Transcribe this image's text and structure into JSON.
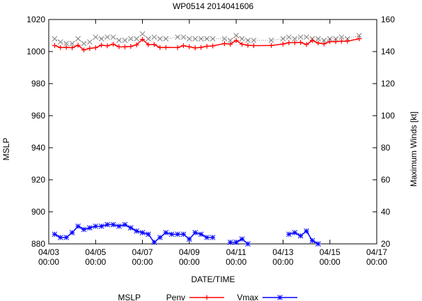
{
  "chart_data": {
    "type": "line",
    "title": "WP0514 2014041606",
    "xlabel": "DATE/TIME",
    "ylabel": "MSLP",
    "y2label": "Maximum Winds [kt]",
    "x_ticks": [
      {
        "day": 0,
        "label1": "04/03",
        "label2": "00:00"
      },
      {
        "day": 2,
        "label1": "04/05",
        "label2": "00:00"
      },
      {
        "day": 4,
        "label1": "04/07",
        "label2": "00:00"
      },
      {
        "day": 6,
        "label1": "04/09",
        "label2": "00:00"
      },
      {
        "day": 8,
        "label1": "04/11",
        "label2": "00:00"
      },
      {
        "day": 10,
        "label1": "04/13",
        "label2": "00:00"
      },
      {
        "day": 12,
        "label1": "04/15",
        "label2": "00:00"
      },
      {
        "day": 14,
        "label1": "04/17",
        "label2": "00:00"
      }
    ],
    "xlim_days": [
      0,
      14
    ],
    "ylim": [
      880,
      1020
    ],
    "yticks": [
      880,
      900,
      920,
      940,
      960,
      980,
      1000,
      1020
    ],
    "y2lim": [
      20,
      160
    ],
    "y2ticks": [
      20,
      40,
      60,
      80,
      100,
      120,
      140,
      160
    ],
    "legend": {
      "position": "bottom",
      "title": "MSLP"
    },
    "grid": false,
    "series": [
      {
        "name": "Penv",
        "axis": "y",
        "color": "#ff0000",
        "marker": "plus",
        "line": "solid",
        "points": [
          [
            0.25,
            1003.8
          ],
          [
            0.5,
            1002.5
          ],
          [
            0.75,
            1002.6
          ],
          [
            1.0,
            1002.4
          ],
          [
            1.25,
            1003.9
          ],
          [
            1.5,
            1001.0
          ],
          [
            1.75,
            1002.0
          ],
          [
            2.0,
            1002.4
          ],
          [
            2.25,
            1004.0
          ],
          [
            2.5,
            1003.6
          ],
          [
            2.75,
            1004.6
          ],
          [
            3.0,
            1003.0
          ],
          [
            3.25,
            1002.9
          ],
          [
            3.5,
            1003.2
          ],
          [
            3.75,
            1004.2
          ],
          [
            4.0,
            1007.6
          ],
          [
            4.25,
            1004.3
          ],
          [
            4.5,
            1004.4
          ],
          [
            4.75,
            1002.5
          ],
          [
            5.0,
            1002.6
          ],
          [
            5.5,
            1002.5
          ],
          [
            5.75,
            1003.7
          ],
          [
            6.0,
            1003.0
          ],
          [
            6.25,
            1002.3
          ],
          [
            6.5,
            1002.6
          ],
          [
            6.75,
            1003.3
          ],
          [
            7.0,
            1003.5
          ],
          [
            7.5,
            1005.0
          ],
          [
            7.75,
            1004.6
          ],
          [
            8.0,
            1006.9
          ],
          [
            8.25,
            1004.6
          ],
          [
            8.5,
            1003.9
          ],
          [
            8.75,
            1003.7
          ],
          [
            9.5,
            1003.8
          ],
          [
            10.0,
            1004.7
          ],
          [
            10.25,
            1005.5
          ],
          [
            10.5,
            1005.5
          ],
          [
            10.75,
            1005.7
          ],
          [
            11.0,
            1004.4
          ],
          [
            11.25,
            1006.9
          ],
          [
            11.5,
            1005.3
          ],
          [
            11.75,
            1004.8
          ],
          [
            12.0,
            1006.2
          ],
          [
            12.25,
            1006.2
          ],
          [
            12.5,
            1006.5
          ],
          [
            12.75,
            1006.5
          ],
          [
            13.25,
            1008.0
          ]
        ]
      },
      {
        "name": "Vmax",
        "axis": "y2",
        "color": "#0000ff",
        "marker": "star",
        "line": "solid",
        "segments": [
          [
            [
              0.25,
              26
            ],
            [
              0.5,
              24
            ],
            [
              0.75,
              24
            ],
            [
              1.0,
              27
            ],
            [
              1.25,
              31
            ],
            [
              1.5,
              29
            ],
            [
              1.75,
              30
            ],
            [
              2.0,
              31
            ],
            [
              2.25,
              31
            ],
            [
              2.5,
              32
            ],
            [
              2.75,
              32
            ],
            [
              3.0,
              31
            ],
            [
              3.25,
              32
            ],
            [
              3.5,
              30
            ],
            [
              3.75,
              28
            ],
            [
              4.0,
              27
            ],
            [
              4.25,
              26
            ],
            [
              4.5,
              21
            ],
            [
              4.75,
              24
            ],
            [
              5.0,
              27
            ],
            [
              5.25,
              26
            ],
            [
              5.5,
              26
            ],
            [
              5.75,
              26
            ],
            [
              6.0,
              23
            ],
            [
              6.25,
              27
            ],
            [
              6.5,
              26
            ],
            [
              6.75,
              24
            ],
            [
              7.0,
              24
            ]
          ],
          [
            [
              7.75,
              21
            ],
            [
              8.0,
              21
            ],
            [
              8.25,
              23
            ],
            [
              8.5,
              20
            ]
          ],
          [
            [
              10.25,
              26
            ],
            [
              10.5,
              27
            ],
            [
              10.75,
              25
            ],
            [
              11.0,
              28
            ],
            [
              11.25,
              22
            ],
            [
              11.5,
              20
            ]
          ]
        ]
      },
      {
        "name": "",
        "axis": "y",
        "color": "#7f7f7f",
        "marker": "cross",
        "line": "dotted",
        "points": [
          [
            0.25,
            1008
          ],
          [
            0.5,
            1006
          ],
          [
            0.75,
            1005
          ],
          [
            1.0,
            1005
          ],
          [
            1.25,
            1008
          ],
          [
            1.5,
            1005
          ],
          [
            1.75,
            1006
          ],
          [
            2.0,
            1009
          ],
          [
            2.25,
            1008
          ],
          [
            2.5,
            1009
          ],
          [
            2.75,
            1009
          ],
          [
            3.0,
            1007
          ],
          [
            3.25,
            1007
          ],
          [
            3.5,
            1008
          ],
          [
            3.75,
            1008
          ],
          [
            4.0,
            1011
          ],
          [
            4.25,
            1008
          ],
          [
            4.5,
            1009
          ],
          [
            4.75,
            1008
          ],
          [
            5.0,
            1008
          ],
          [
            5.5,
            1009
          ],
          [
            5.75,
            1009
          ],
          [
            6.0,
            1008
          ],
          [
            6.25,
            1008
          ],
          [
            6.5,
            1008
          ],
          [
            6.75,
            1008
          ],
          [
            7.0,
            1008
          ],
          [
            7.5,
            1008
          ],
          [
            7.75,
            1007
          ],
          [
            8.0,
            1010
          ],
          [
            8.25,
            1008
          ],
          [
            8.5,
            1007
          ],
          [
            8.75,
            1007
          ],
          [
            9.5,
            1007
          ],
          [
            10.0,
            1008
          ],
          [
            10.25,
            1009
          ],
          [
            10.5,
            1008
          ],
          [
            10.75,
            1009
          ],
          [
            11.0,
            1009
          ],
          [
            11.25,
            1008
          ],
          [
            11.5,
            1008
          ],
          [
            11.75,
            1007
          ],
          [
            12.0,
            1008
          ],
          [
            12.25,
            1008
          ],
          [
            12.5,
            1009
          ],
          [
            12.75,
            1008
          ],
          [
            13.25,
            1010
          ]
        ]
      }
    ]
  }
}
